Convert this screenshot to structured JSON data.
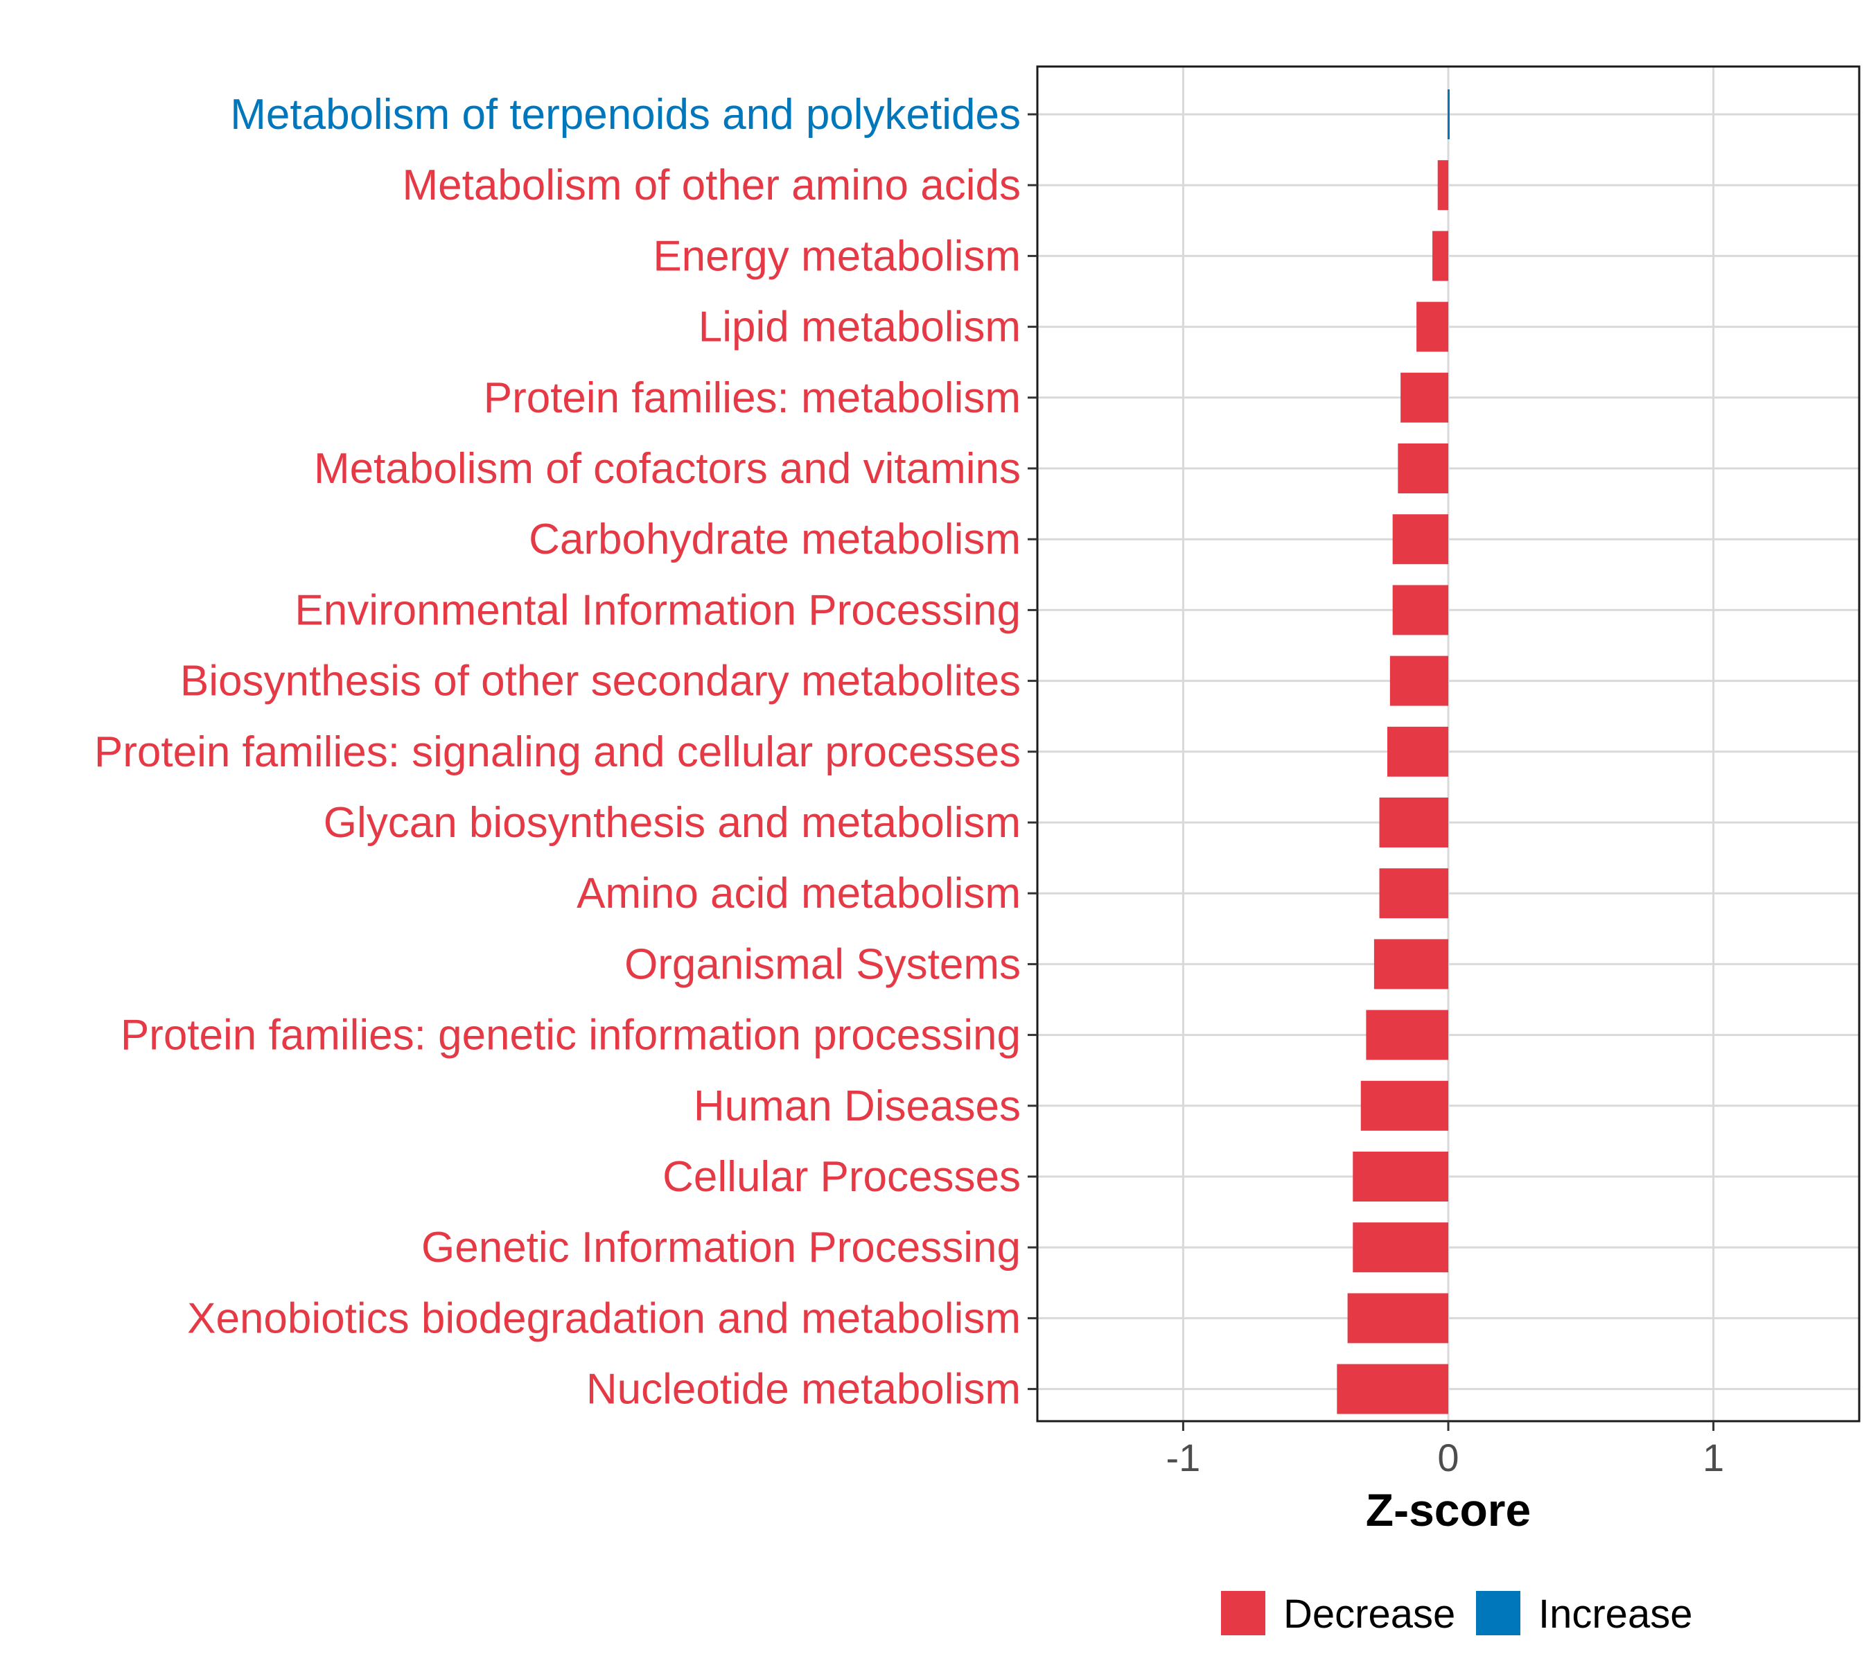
{
  "chart_data": {
    "type": "bar",
    "orientation": "horizontal",
    "title": "",
    "xlabel": "Z-score",
    "ylabel": "",
    "xlim": [
      -1.55,
      1.55
    ],
    "xticks": [
      -1,
      0,
      1
    ],
    "xtick_labels": [
      "-1",
      "0",
      "1"
    ],
    "grid": true,
    "legend_position": "bottom",
    "colors": {
      "Decrease": "#e63946",
      "Increase": "#0077bb"
    },
    "legend": [
      {
        "label": "Decrease",
        "color": "#e63946"
      },
      {
        "label": "Increase",
        "color": "#0077bb"
      }
    ],
    "categories": [
      "Metabolism of terpenoids and polyketides",
      "Metabolism of other amino acids",
      "Energy metabolism",
      "Lipid metabolism",
      "Protein families: metabolism",
      "Metabolism of cofactors and vitamins",
      "Carbohydrate metabolism",
      "Environmental Information Processing",
      "Biosynthesis of other secondary metabolites",
      "Protein families: signaling and cellular processes",
      "Glycan biosynthesis and metabolism",
      "Amino acid metabolism",
      "Organismal Systems",
      "Protein families: genetic information processing",
      "Human Diseases",
      "Cellular Processes",
      "Genetic Information Processing",
      "Xenobiotics biodegradation and metabolism",
      "Nucleotide metabolism"
    ],
    "values": [
      0.005,
      -0.04,
      -0.06,
      -0.12,
      -0.18,
      -0.19,
      -0.21,
      -0.21,
      -0.22,
      -0.23,
      -0.26,
      -0.26,
      -0.28,
      -0.31,
      -0.33,
      -0.36,
      -0.36,
      -0.38,
      -0.42
    ],
    "direction": [
      "Increase",
      "Decrease",
      "Decrease",
      "Decrease",
      "Decrease",
      "Decrease",
      "Decrease",
      "Decrease",
      "Decrease",
      "Decrease",
      "Decrease",
      "Decrease",
      "Decrease",
      "Decrease",
      "Decrease",
      "Decrease",
      "Decrease",
      "Decrease",
      "Decrease"
    ]
  }
}
